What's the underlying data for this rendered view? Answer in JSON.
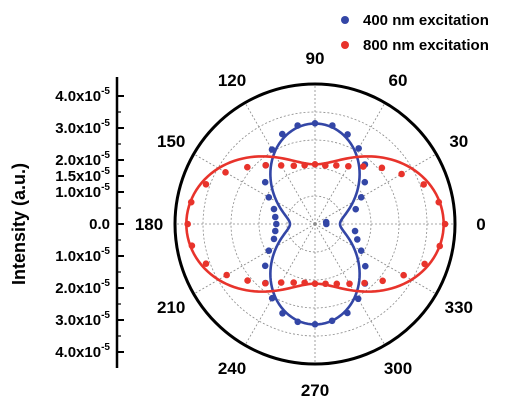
{
  "chart_data": {
    "type": "scatter",
    "subtype": "polar",
    "ylabel": "Intensity (a.u.)",
    "y_ticks": [
      {
        "mant": "4.0x10",
        "exp": "-5"
      },
      {
        "mant": "3.0x10",
        "exp": "-5"
      },
      {
        "mant": "2.0x10",
        "exp": "-5"
      },
      {
        "mant": "1.5x10",
        "exp": "-5"
      },
      {
        "mant": "1.0x10",
        "exp": "-5"
      },
      {
        "mant": "0.0",
        "exp": ""
      },
      {
        "mant": "1.0x10",
        "exp": "-5"
      },
      {
        "mant": "2.0x10",
        "exp": "-5"
      },
      {
        "mant": "3.0x10",
        "exp": "-5"
      },
      {
        "mant": "4.0x10",
        "exp": "-5"
      }
    ],
    "radial_ylim": [
      0,
      4.2e-05
    ],
    "angle_ticks": [
      "0",
      "30",
      "60",
      "90",
      "120",
      "150",
      "180",
      "210",
      "240",
      "270",
      "300",
      "330"
    ],
    "grid": true,
    "legend_position": "top-right",
    "series": [
      {
        "name": "400 nm excitation",
        "color": "#3346a6",
        "angles_deg": [
          0,
          10,
          20,
          30,
          40,
          50,
          60,
          70,
          80,
          90,
          100,
          110,
          120,
          130,
          140,
          150,
          160,
          170,
          180,
          190,
          200,
          210,
          220,
          230,
          240,
          250,
          260,
          270,
          280,
          290,
          300,
          310,
          320,
          330,
          340,
          350
        ],
        "values": [
          3.4e-06,
          3.4e-06,
          1.3e-05,
          1.6e-05,
          1.95e-05,
          2.33e-05,
          2.62e-05,
          2.86e-05,
          3e-05,
          3.02e-05,
          3e-05,
          2.87e-05,
          2.58e-05,
          2.3e-05,
          1.95e-05,
          1.6e-05,
          1.31e-05,
          1.21e-05,
          1.16e-05,
          1.21e-05,
          1.31e-05,
          1.6e-05,
          1.95e-05,
          2.31e-05,
          2.57e-05,
          2.85e-05,
          2.98e-05,
          3.01e-05,
          2.95e-05,
          2.84e-05,
          2.59e-05,
          2.33e-05,
          1.97e-05,
          1.6e-05,
          1.35e-05,
          1.22e-05
        ],
        "fit": "cos2"
      },
      {
        "name": "800 nm excitation",
        "color": "#e8332b",
        "angles_deg": [
          0,
          10,
          20,
          30,
          40,
          50,
          60,
          70,
          80,
          90,
          100,
          110,
          120,
          130,
          140,
          150,
          160,
          170,
          180,
          190,
          200,
          210,
          220,
          230,
          240,
          250,
          260,
          270,
          280,
          290,
          300,
          310,
          320,
          330,
          340,
          350
        ],
        "values": [
          3.9e-05,
          3.77e-05,
          3.47e-05,
          3e-05,
          2.62e-05,
          2.25e-05,
          2e-05,
          1.87e-05,
          1.78e-05,
          1.79e-05,
          1.79e-05,
          1.86e-05,
          2.03e-05,
          2.3e-05,
          2.65e-05,
          3.1e-05,
          3.48e-05,
          3.77e-05,
          3.82e-05,
          3.75e-05,
          3.48e-05,
          3.06e-05,
          2.64e-05,
          2.32e-05,
          2.03e-05,
          1.87e-05,
          1.79e-05,
          1.79e-05,
          1.82e-05,
          1.91e-05,
          2.07e-05,
          2.31e-05,
          2.65e-05,
          3.07e-05,
          3.5e-05,
          3.8e-05
        ],
        "fit": "cos2"
      }
    ]
  }
}
